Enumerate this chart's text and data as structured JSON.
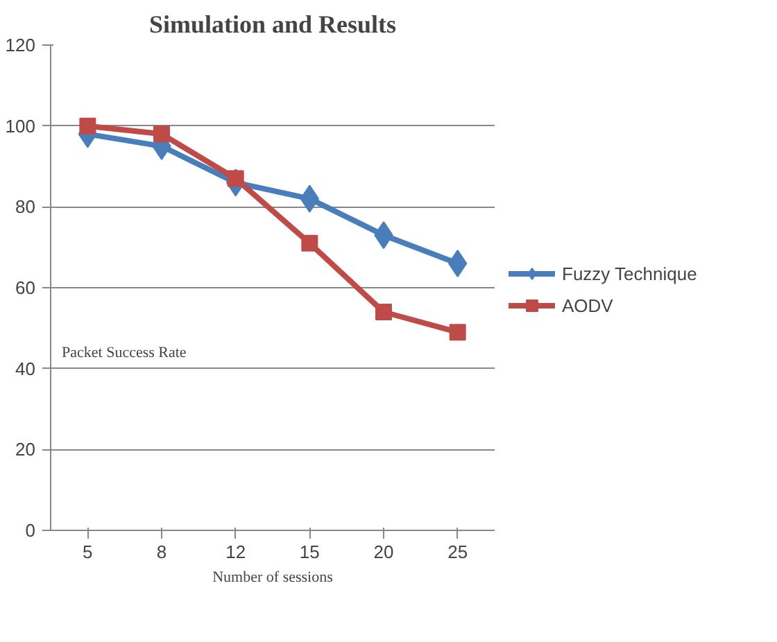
{
  "chart_data": {
    "type": "line",
    "title": "Simulation and Results",
    "xlabel": "Number of sessions",
    "annotations": [
      "Packet Success Rate"
    ],
    "categories": [
      "5",
      "8",
      "12",
      "15",
      "20",
      "25"
    ],
    "series": [
      {
        "name": "Fuzzy Technique",
        "color": "#4a7ebb",
        "values": [
          98,
          95,
          86,
          82,
          73,
          66
        ],
        "marker": "diamond"
      },
      {
        "name": "AODV",
        "color": "#be4b48",
        "values": [
          100,
          98,
          87,
          71,
          54,
          49
        ],
        "marker": "square"
      }
    ],
    "ylim": [
      0,
      120
    ],
    "yticks": [
      0,
      20,
      40,
      60,
      80,
      100,
      120
    ],
    "grid": "y",
    "legend": "right",
    "line_style": "solid"
  }
}
